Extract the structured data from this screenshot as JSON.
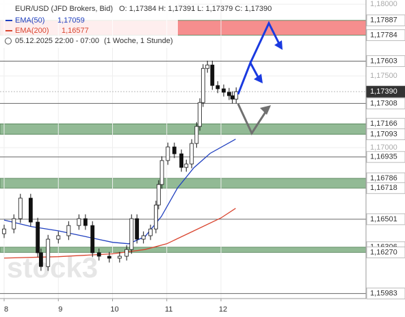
{
  "chart_data": {
    "type": "candlestick",
    "title": "EUR/USD (JFD Brokers, Bid)",
    "ohlc_text": "O: 1,17384  H: 1,17391  L: 1,17379  C: 1,17390",
    "period": "05.12.2025 22:00 - 07:00",
    "interval": "(1 Woche, 1 Stunde)",
    "watermark": "stock3",
    "xlim": [
      7.924,
      14.675
    ],
    "xticks": [
      8,
      9,
      10,
      11,
      12
    ],
    "ylim": [
      1.15948,
      1.18029
    ],
    "yticks": [
      {
        "value": 1.18,
        "label": "1,18000"
      },
      {
        "value": 1.175,
        "label": "1,17500"
      },
      {
        "value": 1.17,
        "label": "1,17000"
      }
    ],
    "x": [
      8.0,
      8.18,
      8.3,
      8.49,
      8.62,
      8.68,
      8.81,
      9.0,
      9.19,
      9.38,
      9.5,
      9.63,
      9.75,
      9.94,
      10.13,
      10.26,
      10.35,
      10.45,
      10.57,
      10.7,
      10.8,
      10.85,
      10.91,
      11.02,
      11.14,
      11.27,
      11.36,
      11.46,
      11.55,
      11.61,
      11.67,
      11.75,
      11.84,
      11.94,
      12.05,
      12.15,
      12.21,
      12.28
    ],
    "open": [
      1.164,
      1.16433,
      1.16505,
      1.16648,
      1.16481,
      1.16267,
      1.16171,
      1.16362,
      1.16386,
      1.16457,
      1.16505,
      1.16457,
      1.16267,
      1.16243,
      1.16229,
      1.16243,
      1.1629,
      1.16505,
      1.16362,
      1.16386,
      1.16433,
      1.166,
      1.16743,
      1.1691,
      1.17005,
      1.16957,
      1.16862,
      1.16886,
      1.17029,
      1.17148,
      1.17314,
      1.17552,
      1.17576,
      1.17433,
      1.1741,
      1.17386,
      1.17362,
      1.17338
    ],
    "high": [
      1.16463,
      1.16535,
      1.16678,
      1.16678,
      1.16511,
      1.16297,
      1.16392,
      1.16416,
      1.16487,
      1.16535,
      1.16535,
      1.16487,
      1.16297,
      1.16273,
      1.16273,
      1.1632,
      1.16535,
      1.16535,
      1.16416,
      1.16463,
      1.1663,
      1.16773,
      1.1694,
      1.17035,
      1.17035,
      1.16987,
      1.16916,
      1.17059,
      1.17178,
      1.17344,
      1.17582,
      1.17606,
      1.17606,
      1.17463,
      1.1744,
      1.17416,
      1.17392,
      1.1742
    ],
    "low": [
      1.1637,
      1.16403,
      1.16475,
      1.16451,
      1.16237,
      1.16141,
      1.16141,
      1.16332,
      1.16356,
      1.16427,
      1.16427,
      1.16237,
      1.16213,
      1.16199,
      1.16199,
      1.16213,
      1.1626,
      1.16332,
      1.16332,
      1.16356,
      1.16403,
      1.1657,
      1.16713,
      1.1688,
      1.16927,
      1.16832,
      1.16832,
      1.16856,
      1.16999,
      1.17118,
      1.17284,
      1.17522,
      1.17403,
      1.1738,
      1.17356,
      1.17332,
      1.17308,
      1.17308
    ],
    "close": [
      1.16433,
      1.16505,
      1.16648,
      1.16481,
      1.16267,
      1.16171,
      1.16362,
      1.16386,
      1.16457,
      1.16505,
      1.16457,
      1.16267,
      1.16243,
      1.16229,
      1.16243,
      1.1629,
      1.16505,
      1.16362,
      1.16386,
      1.16433,
      1.166,
      1.16743,
      1.1691,
      1.17005,
      1.16957,
      1.16862,
      1.16886,
      1.17029,
      1.17148,
      1.17314,
      1.17552,
      1.17576,
      1.17433,
      1.1741,
      1.17386,
      1.17362,
      1.17338,
      1.1739
    ],
    "series": [
      {
        "name": "EMA(50)",
        "value_label": "1,17059",
        "color": "#1f3fbf",
        "x": [
          8.0,
          8.5,
          9.0,
          9.5,
          10.0,
          10.3,
          10.6,
          10.9,
          11.2,
          11.5,
          11.8,
          12.27
        ],
        "values": [
          1.16495,
          1.1645,
          1.1642,
          1.1638,
          1.1634,
          1.1633,
          1.1638,
          1.1652,
          1.1672,
          1.1686,
          1.1696,
          1.17059
        ]
      },
      {
        "name": "EMA(200)",
        "value_label": "1,16577",
        "color": "#d9442e",
        "x": [
          8.0,
          9.0,
          10.0,
          10.6,
          11.0,
          11.5,
          12.0,
          12.27
        ],
        "values": [
          1.1623,
          1.1624,
          1.1626,
          1.1629,
          1.1633,
          1.1642,
          1.1651,
          1.16577
        ]
      }
    ],
    "zones": [
      {
        "low": {
          "value": 1.17784,
          "label": "1,17784"
        },
        "high": {
          "value": 1.17887,
          "label": "1,17887"
        },
        "color": "#f47a7a"
      },
      {
        "low": {
          "value": 1.17093,
          "label": "1,17093"
        },
        "high": {
          "value": 1.17166,
          "label": "1,17166"
        },
        "color": "#7fae82"
      },
      {
        "low": {
          "value": 1.16718,
          "label": "1,16718"
        },
        "high": {
          "value": 1.16786,
          "label": "1,16786"
        },
        "color": "#7fae82"
      },
      {
        "low": {
          "value": 1.1627,
          "label": "1,16270"
        },
        "high": {
          "value": 1.16306,
          "label": "1,16306"
        },
        "color": "#7fae82"
      }
    ],
    "levels": [
      {
        "value": 1.17603,
        "label": "1,17603"
      },
      {
        "value": 1.17308,
        "label": "1,17308"
      },
      {
        "value": 1.16935,
        "label": "1,16935"
      },
      {
        "value": 1.16501,
        "label": "1,16501"
      },
      {
        "value": 1.15983,
        "label": "1,15983"
      }
    ],
    "last_price": {
      "value": 1.1739,
      "label": "1,17390"
    }
  }
}
